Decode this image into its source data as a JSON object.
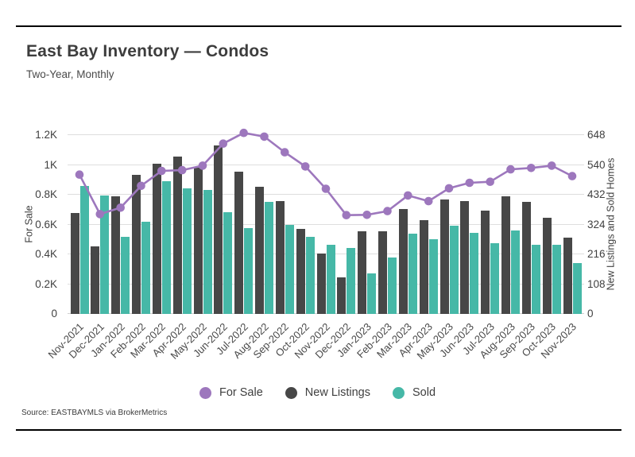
{
  "header": {
    "title": "East Bay Inventory — Condos",
    "subtitle": "Two-Year, Monthly"
  },
  "source_line": "Source:  EASTBAYMLS via BrokerMetrics",
  "colors": {
    "for_sale_purple": "#9d77bd",
    "new_listings_dark": "#474747",
    "sold_teal": "#46b8a7",
    "grid": "#dedede",
    "rule_black": "#000000",
    "text_dark": "#3d3d3d",
    "text_gray": "#4a4a4a"
  },
  "chart_data": {
    "type": "bar",
    "subtype": "combo-bar-line-dual-axis",
    "title": "East Bay Inventory — Condos",
    "subtitle": "Two-Year, Monthly",
    "grid": "horizontal-on",
    "legend_position": "bottom-center",
    "categories": [
      "Nov-2021",
      "Dec-2021",
      "Jan-2022",
      "Feb-2022",
      "Mar-2022",
      "Apr-2022",
      "May-2022",
      "Jun-2022",
      "Jul-2022",
      "Aug-2022",
      "Sep-2022",
      "Oct-2022",
      "Nov-2022",
      "Dec-2022",
      "Jan-2023",
      "Feb-2023",
      "Mar-2023",
      "Apr-2023",
      "May-2023",
      "Jun-2023",
      "Jul-2023",
      "Aug-2023",
      "Sep-2023",
      "Oct-2023",
      "Nov-2023"
    ],
    "left_axis": {
      "label": "For Sale",
      "range": [
        0,
        1200
      ],
      "tick_labels": [
        "0",
        "0.2K",
        "0.4K",
        "0.6K",
        "0.8K",
        "1K",
        "1.2K"
      ],
      "tick_values": [
        0,
        200,
        400,
        600,
        800,
        1000,
        1200
      ]
    },
    "right_axis": {
      "label": "New Listings and Sold Homes",
      "range": [
        0,
        648
      ],
      "tick_labels": [
        "0",
        "108",
        "216",
        "324",
        "432",
        "540",
        "648"
      ],
      "tick_values": [
        0,
        108,
        216,
        324,
        432,
        540,
        648
      ]
    },
    "series": [
      {
        "name": "For Sale",
        "kind": "line",
        "axis": "left",
        "color": "#9d77bd",
        "values": [
          935,
          670,
          713,
          860,
          960,
          965,
          995,
          1143,
          1215,
          1190,
          1085,
          990,
          840,
          663,
          665,
          690,
          795,
          757,
          843,
          880,
          887,
          970,
          980,
          995,
          925
        ]
      },
      {
        "name": "New Listings",
        "kind": "bar",
        "axis": "right",
        "color": "#474747",
        "values": [
          365,
          245,
          425,
          505,
          545,
          570,
          530,
          612,
          515,
          460,
          410,
          308,
          220,
          133,
          300,
          300,
          380,
          340,
          415,
          410,
          375,
          425,
          405,
          348,
          277
        ]
      },
      {
        "name": "Sold",
        "kind": "bar",
        "axis": "right",
        "color": "#46b8a7",
        "values": [
          465,
          430,
          280,
          335,
          480,
          455,
          450,
          370,
          310,
          405,
          323,
          280,
          250,
          240,
          148,
          205,
          290,
          270,
          320,
          295,
          257,
          303,
          250,
          250,
          185
        ]
      }
    ]
  }
}
